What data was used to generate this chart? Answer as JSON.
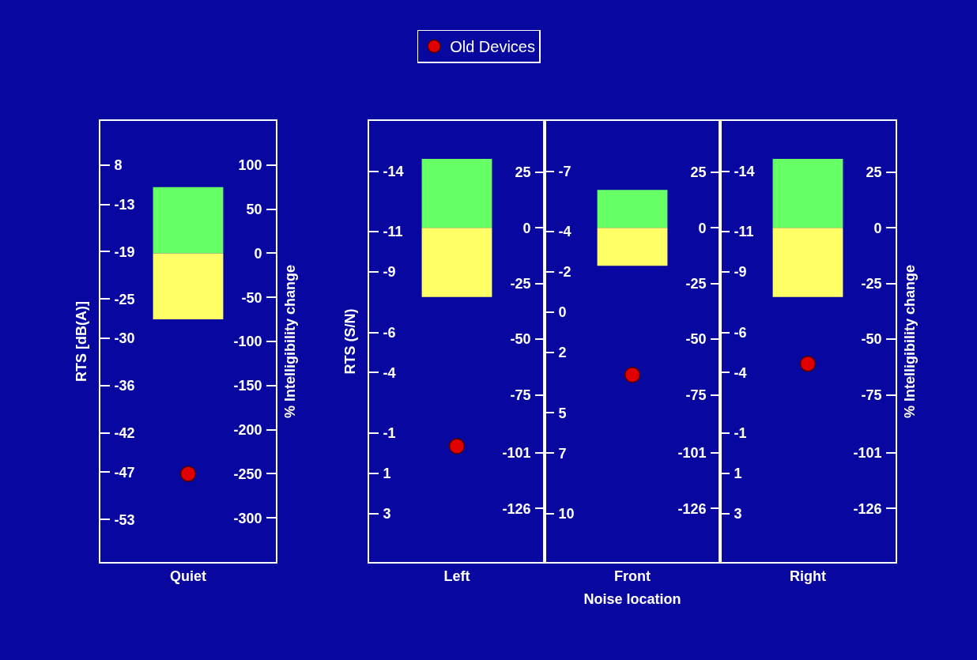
{
  "chart_data": [
    {
      "type": "bar",
      "categories": [
        "Quiet"
      ],
      "ylabel": "RTS [dB(A)]",
      "y2label": "% Intelligibility change",
      "marker": "circle",
      "legend": "top",
      "series": [
        {
          "color": "#66ff66",
          "values": [
            75
          ],
          "axis": "y2"
        },
        {
          "color": "#ffff66",
          "values": [
            -75
          ],
          "axis": "y2"
        },
        {
          "type": "scatter",
          "name": "Old Devices",
          "color": "#e00000",
          "values": [
            -250
          ],
          "axis": "y2"
        }
      ],
      "ylim": [
        -58.4,
        -2.4
      ],
      "yticks": [
        {
          "value": -8,
          "label": "8"
        },
        -13,
        -19,
        -25,
        -30,
        -36,
        -42,
        -47,
        -53
      ],
      "stacked": true,
      "y2lim": [
        -350,
        150
      ],
      "y2ticks": [
        100,
        50,
        0,
        -50,
        -100,
        -150,
        -200,
        -250,
        -300
      ]
    },
    {
      "type": "bar",
      "categories": [
        "Left"
      ],
      "ylabel": "RTS (S/N)",
      "marker": "circle",
      "series": [
        {
          "color": "#66ff66",
          "values": [
            31
          ],
          "axis": "y2"
        },
        {
          "color": "#ffff66",
          "values": [
            -31
          ],
          "axis": "y2"
        },
        {
          "type": "scatter",
          "color": "#e00000",
          "values": [
            -98
          ],
          "axis": "y2"
        }
      ],
      "ylim": [
        5.4,
        -16.5
      ],
      "stacked": true,
      "yticks": [
        -14,
        -11,
        -9,
        -6,
        -4,
        -1,
        1,
        3
      ],
      "y2lim": [
        -150,
        48
      ],
      "y2ticks": [
        25,
        0,
        -25,
        -50,
        -75,
        -101,
        -126
      ]
    },
    {
      "type": "bar",
      "categories": [
        "Front"
      ],
      "xlabel": "Noise location",
      "marker": "circle",
      "series": [
        {
          "color": "#66ff66",
          "values": [
            17
          ],
          "axis": "y2"
        },
        {
          "color": "#ffff66",
          "values": [
            -17
          ],
          "axis": "y2"
        },
        {
          "type": "scatter",
          "color": "#e00000",
          "values": [
            -66
          ],
          "axis": "y2"
        }
      ],
      "ylim": [
        12.4,
        -9.5
      ],
      "yticks": [
        -7,
        -4,
        -2,
        0,
        2,
        5,
        7,
        10
      ],
      "stacked": true,
      "y2lim": [
        -150,
        48
      ],
      "y2ticks": [
        25,
        0,
        -25,
        -50,
        -75,
        -101,
        -126
      ]
    },
    {
      "type": "bar",
      "categories": [
        "Right"
      ],
      "y2label": "% Intelligibility change",
      "marker": "circle",
      "series": [
        {
          "color": "#66ff66",
          "values": [
            31
          ],
          "axis": "y2"
        },
        {
          "color": "#ffff66",
          "values": [
            -31
          ],
          "axis": "y2"
        },
        {
          "type": "scatter",
          "color": "#e00000",
          "values": [
            -61
          ],
          "axis": "y2"
        }
      ],
      "ylim": [
        5.4,
        -16.5
      ],
      "stacked": true,
      "yticks": [
        -14,
        -11,
        -9,
        -6,
        -4,
        -1,
        1,
        3
      ],
      "y2lim": [
        -150,
        48
      ],
      "y2ticks": [
        25,
        0,
        -25,
        -50,
        -75,
        -101,
        -126
      ]
    }
  ]
}
